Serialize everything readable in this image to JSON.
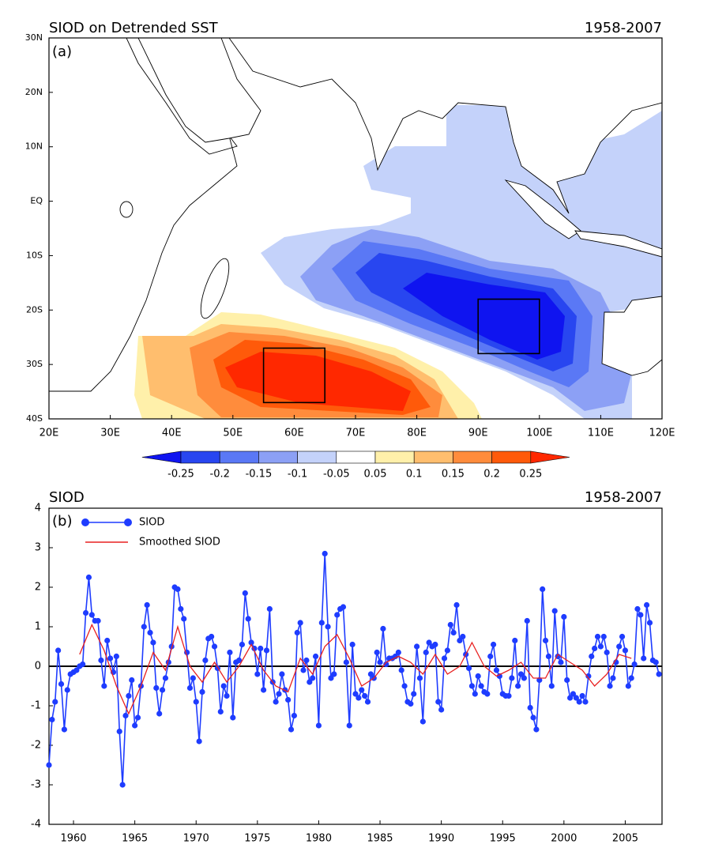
{
  "chart_data": [
    {
      "type": "map",
      "title": "SIOD on Detrended SST",
      "subtitle": "1958-2007",
      "panel_label": "(a)",
      "xlim": [
        20,
        120
      ],
      "ylim": [
        -40,
        30
      ],
      "xticks": [
        {
          "value": 20,
          "label": "20E"
        },
        {
          "value": 30,
          "label": "30E"
        },
        {
          "value": 40,
          "label": "40E"
        },
        {
          "value": 50,
          "label": "50E"
        },
        {
          "value": 60,
          "label": "60E"
        },
        {
          "value": 70,
          "label": "70E"
        },
        {
          "value": 80,
          "label": "80E"
        },
        {
          "value": 90,
          "label": "90E"
        },
        {
          "value": 100,
          "label": "100E"
        },
        {
          "value": 110,
          "label": "110E"
        },
        {
          "value": 120,
          "label": "120E"
        }
      ],
      "yticks": [
        {
          "value": -40,
          "label": "40S"
        },
        {
          "value": -30,
          "label": "30S"
        },
        {
          "value": -20,
          "label": "20S"
        },
        {
          "value": -10,
          "label": "10S"
        },
        {
          "value": 0,
          "label": "EQ"
        },
        {
          "value": 10,
          "label": "10N"
        },
        {
          "value": 20,
          "label": "20N"
        },
        {
          "value": 30,
          "label": "30N"
        }
      ],
      "boxes": [
        {
          "lon": [
            55,
            65
          ],
          "lat": [
            -37,
            -27
          ]
        },
        {
          "lon": [
            90,
            100
          ],
          "lat": [
            -28,
            -18
          ]
        }
      ],
      "colorbar": {
        "levels": [
          -0.25,
          -0.2,
          -0.15,
          -0.1,
          -0.05,
          0.05,
          0.1,
          0.15,
          0.2,
          0.25
        ],
        "colors": [
          "#0f14f0",
          "#2846f0",
          "#5a78f5",
          "#8ca0f5",
          "#c4d2fa",
          "#ffffff",
          "#fff0aa",
          "#ffbe6e",
          "#ff8c3c",
          "#ff5a0a",
          "#ff2800"
        ]
      }
    },
    {
      "type": "line",
      "title": "SIOD",
      "subtitle": "1958-2007",
      "panel_label": "(b)",
      "xlim": [
        1958,
        2008
      ],
      "ylim": [
        -4,
        4
      ],
      "xticks": [
        1960,
        1965,
        1970,
        1975,
        1980,
        1985,
        1990,
        1995,
        2000,
        2005
      ],
      "yticks": [
        -4,
        -3,
        -2,
        -1,
        0,
        1,
        2,
        3,
        4
      ],
      "series": [
        {
          "name": "SIOD",
          "color": "#1e3cff",
          "markers": true,
          "x": [
            1958,
            1958.25,
            1958.5,
            1958.75,
            1959,
            1959.25,
            1959.5,
            1959.75,
            1960,
            1960.25,
            1960.5,
            1960.75,
            1961,
            1961.25,
            1961.5,
            1961.75,
            1962,
            1962.25,
            1962.5,
            1962.75,
            1963,
            1963.25,
            1963.5,
            1963.75,
            1964,
            1964.25,
            1964.5,
            1964.75,
            1965,
            1965.25,
            1965.5,
            1965.75,
            1966,
            1966.25,
            1966.5,
            1966.75,
            1967,
            1967.25,
            1967.5,
            1967.75,
            1968,
            1968.25,
            1968.5,
            1968.75,
            1969,
            1969.25,
            1969.5,
            1969.75,
            1970,
            1970.25,
            1970.5,
            1970.75,
            1971,
            1971.25,
            1971.5,
            1971.75,
            1972,
            1972.25,
            1972.5,
            1972.75,
            1973,
            1973.25,
            1973.5,
            1973.75,
            1974,
            1974.25,
            1974.5,
            1974.75,
            1975,
            1975.25,
            1975.5,
            1975.75,
            1976,
            1976.25,
            1976.5,
            1976.75,
            1977,
            1977.25,
            1977.5,
            1977.75,
            1978,
            1978.25,
            1978.5,
            1978.75,
            1979,
            1979.25,
            1979.5,
            1979.75,
            1980,
            1980.25,
            1980.5,
            1980.75,
            1981,
            1981.25,
            1981.5,
            1981.75,
            1982,
            1982.25,
            1982.5,
            1982.75,
            1983,
            1983.25,
            1983.5,
            1983.75,
            1984,
            1984.25,
            1984.5,
            1984.75,
            1985,
            1985.25,
            1985.5,
            1985.75,
            1986,
            1986.25,
            1986.5,
            1986.75,
            1987,
            1987.25,
            1987.5,
            1987.75,
            1988,
            1988.25,
            1988.5,
            1988.75,
            1989,
            1989.25,
            1989.5,
            1989.75,
            1990,
            1990.25,
            1990.5,
            1990.75,
            1991,
            1991.25,
            1991.5,
            1991.75,
            1992,
            1992.25,
            1992.5,
            1992.75,
            1993,
            1993.25,
            1993.5,
            1993.75,
            1994,
            1994.25,
            1994.5,
            1994.75,
            1995,
            1995.25,
            1995.5,
            1995.75,
            1996,
            1996.25,
            1996.5,
            1996.75,
            1997,
            1997.25,
            1997.5,
            1997.75,
            1998,
            1998.25,
            1998.5,
            1998.75,
            1999,
            1999.25,
            1999.5,
            1999.75,
            2000,
            2000.25,
            2000.5,
            2000.75,
            2001,
            2001.25,
            2001.5,
            2001.75,
            2002,
            2002.25,
            2002.5,
            2002.75,
            2003,
            2003.25,
            2003.5,
            2003.75,
            2004,
            2004.25,
            2004.5,
            2004.75,
            2005,
            2005.25,
            2005.5,
            2005.75,
            2006,
            2006.25,
            2006.5,
            2006.75,
            2007,
            2007.25,
            2007.5,
            2007.75
          ],
          "values": [
            -2.5,
            -1.35,
            -0.9,
            0.4,
            -0.45,
            -1.6,
            -0.6,
            -0.2,
            -0.15,
            -0.1,
            0.0,
            0.05,
            1.35,
            2.25,
            1.3,
            1.15,
            1.15,
            0.15,
            -0.5,
            0.65,
            0.2,
            -0.15,
            0.25,
            -1.65,
            -3.0,
            -1.25,
            -0.75,
            -0.35,
            -1.5,
            -1.3,
            -0.5,
            1.0,
            1.55,
            0.85,
            0.6,
            -0.55,
            -1.2,
            -0.6,
            -0.3,
            0.1,
            0.5,
            2.0,
            1.95,
            1.45,
            1.2,
            0.35,
            -0.55,
            -0.3,
            -0.9,
            -1.9,
            -0.65,
            0.15,
            0.7,
            0.75,
            0.5,
            -0.05,
            -1.15,
            -0.5,
            -0.75,
            0.35,
            -1.3,
            0.1,
            0.15,
            0.55,
            1.85,
            1.2,
            0.6,
            0.45,
            -0.2,
            0.45,
            -0.6,
            0.4,
            1.45,
            -0.4,
            -0.9,
            -0.7,
            -0.2,
            -0.6,
            -0.85,
            -1.6,
            -1.25,
            0.85,
            1.1,
            -0.1,
            0.15,
            -0.4,
            -0.3,
            0.25,
            -1.5,
            1.1,
            2.85,
            1.0,
            -0.3,
            -0.2,
            1.3,
            1.45,
            1.5,
            0.1,
            -1.5,
            0.55,
            -0.7,
            -0.8,
            -0.6,
            -0.75,
            -0.9,
            -0.2,
            -0.3,
            0.35,
            0.1,
            0.95,
            0.05,
            0.2,
            0.2,
            0.25,
            0.35,
            -0.1,
            -0.5,
            -0.9,
            -0.95,
            -0.7,
            0.5,
            -0.3,
            -1.4,
            0.35,
            0.6,
            0.5,
            0.55,
            -0.9,
            -1.1,
            0.2,
            0.4,
            1.05,
            0.85,
            1.55,
            0.65,
            0.75,
            0.3,
            -0.05,
            -0.5,
            -0.7,
            -0.25,
            -0.5,
            -0.65,
            -0.7,
            0.25,
            0.55,
            -0.1,
            -0.25,
            -0.7,
            -0.75,
            -0.75,
            -0.3,
            0.65,
            -0.5,
            -0.2,
            -0.3,
            1.15,
            -1.05,
            -1.3,
            -1.6,
            -0.35,
            1.95,
            0.65,
            0.25,
            -0.5,
            1.4,
            0.25,
            0.1,
            1.25,
            -0.35,
            -0.8,
            -0.7,
            -0.8,
            -0.9,
            -0.75,
            -0.9,
            -0.25,
            0.25,
            0.45,
            0.75,
            0.5,
            0.75,
            0.35,
            -0.5,
            -0.3,
            0.1,
            0.5,
            0.75,
            0.4,
            -0.5,
            -0.3,
            0.05,
            1.45,
            1.3,
            0.2,
            1.55,
            1.1,
            0.15,
            0.1,
            -0.2
          ]
        },
        {
          "name": "Smoothed SIOD",
          "color": "#e82020",
          "markers": false,
          "x": [
            1960.5,
            1961.5,
            1962.5,
            1963.5,
            1964.5,
            1965.5,
            1966.5,
            1967.5,
            1968.5,
            1969.5,
            1970.5,
            1971.5,
            1972.5,
            1973.5,
            1974.5,
            1975.5,
            1976.5,
            1977.5,
            1978.5,
            1979.5,
            1980.5,
            1981.5,
            1982.5,
            1983.5,
            1984.5,
            1985.5,
            1986.5,
            1987.5,
            1988.5,
            1989.5,
            1990.5,
            1991.5,
            1992.5,
            1993.5,
            1994.5,
            1995.5,
            1996.5,
            1997.5,
            1998.5,
            1999.5,
            2000.5,
            2001.5,
            2002.5,
            2003.5,
            2004.5,
            2005.5
          ],
          "values": [
            0.3,
            1.05,
            0.4,
            -0.5,
            -1.2,
            -0.5,
            0.35,
            -0.1,
            1.0,
            0.0,
            -0.4,
            0.1,
            -0.4,
            0.0,
            0.55,
            -0.1,
            -0.5,
            -0.65,
            0.2,
            -0.2,
            0.5,
            0.8,
            0.2,
            -0.5,
            -0.3,
            0.1,
            0.25,
            0.1,
            -0.2,
            0.3,
            -0.2,
            0.0,
            0.6,
            0.0,
            -0.25,
            -0.1,
            0.1,
            -0.3,
            -0.3,
            0.3,
            0.1,
            -0.1,
            -0.5,
            -0.2,
            0.3,
            0.2
          ]
        }
      ]
    }
  ]
}
